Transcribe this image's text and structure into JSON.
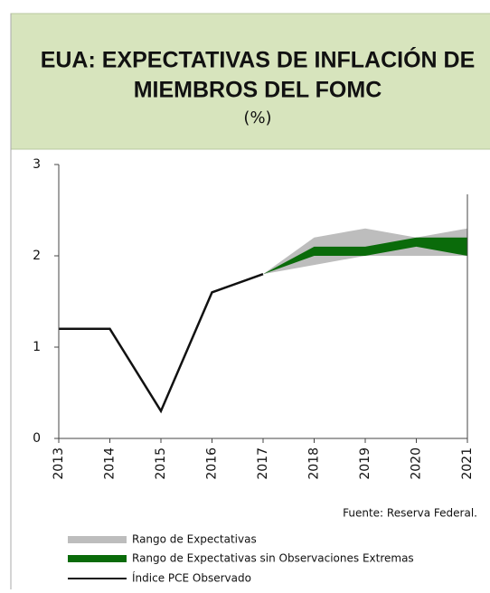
{
  "chart_data": {
    "type": "line",
    "title": "EUA: EXPECTATIVAS DE INFLACIÓN DE",
    "subtitle": "MIEMBROS DEL FOMC",
    "unit_label": "(%)",
    "source": "Fuente: Reserva Federal.",
    "x": [
      2013,
      2014,
      2015,
      2016,
      2017,
      2018,
      2019,
      2020,
      2021
    ],
    "xlim": [
      2013,
      2021
    ],
    "xticks": [
      2013,
      2014,
      2015,
      2016,
      2017,
      2018,
      2019,
      2020,
      2021
    ],
    "ylim": [
      0,
      3
    ],
    "yticks": [
      0,
      1,
      2,
      3
    ],
    "series": [
      {
        "name": "Rango de Expectativas",
        "color": "#bdbdbd",
        "kind": "band",
        "low": [
          null,
          null,
          null,
          null,
          1.8,
          1.9,
          2.0,
          2.0,
          2.0
        ],
        "high": [
          null,
          null,
          null,
          null,
          1.8,
          2.2,
          2.3,
          2.2,
          2.3
        ]
      },
      {
        "name": "Rango de Expectativas sin Observaciones Extremas",
        "color": "#0a6b0a",
        "kind": "band",
        "low": [
          null,
          null,
          null,
          null,
          1.8,
          2.0,
          2.0,
          2.1,
          2.0
        ],
        "high": [
          null,
          null,
          null,
          null,
          1.8,
          2.1,
          2.1,
          2.2,
          2.2
        ]
      },
      {
        "name": "Índice PCE Observado",
        "color": "#111111",
        "kind": "line",
        "values": [
          1.2,
          1.2,
          0.3,
          1.6,
          1.8,
          null,
          null,
          null,
          null
        ]
      }
    ]
  }
}
